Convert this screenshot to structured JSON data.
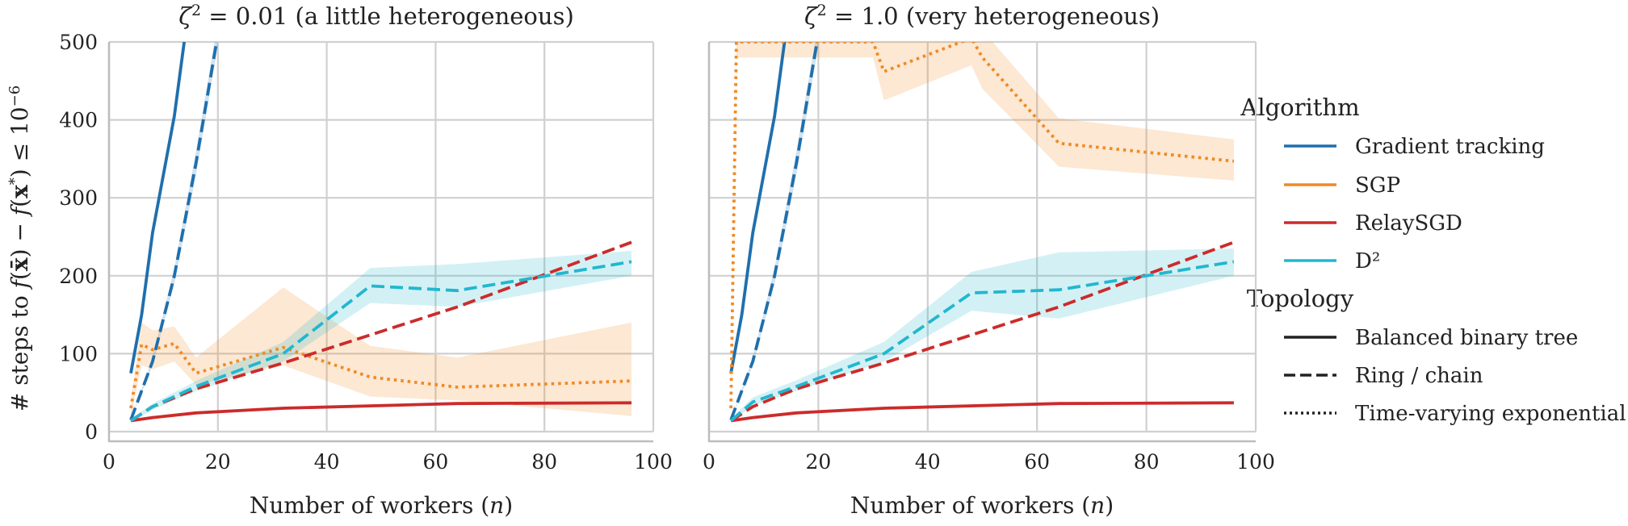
{
  "figure": {
    "ylabel": "# steps to f(x̄) − f(x*) ≤ 10⁻⁶",
    "ylabel_parts": {
      "a": "# steps to ",
      "b": "f",
      "c": "(",
      "d": "x̄",
      "e": ") − ",
      "f": "f",
      "g": "(",
      "h": "x",
      "i": "*",
      "j": ") ≤ 10",
      "k": "−6"
    }
  },
  "legend": {
    "algorithm_title": "Algorithm",
    "algorithms": [
      {
        "name": "Gradient tracking",
        "color": "#1f6fad"
      },
      {
        "name": "SGP",
        "color": "#f08a24"
      },
      {
        "name": "RelaySGD",
        "color": "#cc2b2b"
      },
      {
        "name": "D²",
        "color": "#22b7cf"
      }
    ],
    "topology_title": "Topology",
    "topologies": [
      {
        "name": "Balanced binary tree",
        "style": "solid"
      },
      {
        "name": "Ring / chain",
        "style": "dashed"
      },
      {
        "name": "Time-varying exponential",
        "style": "dotted"
      }
    ]
  },
  "chart_data": [
    {
      "type": "line",
      "title": "ζ² = 0.01 (a little heterogeneous)",
      "title_parts": {
        "a": "ζ",
        "b": "2",
        "c": " = 0.01 (a little heterogeneous)"
      },
      "xlabel": "Number of workers (n)",
      "xlabel_parts": {
        "a": "Number of workers (",
        "b": "n",
        "c": ")"
      },
      "xlim": [
        0,
        100
      ],
      "ylim": [
        0,
        500
      ],
      "xticks": [
        "0",
        "20",
        "40",
        "60",
        "80",
        "100"
      ],
      "yticks": [
        "0",
        "100",
        "200",
        "300",
        "400",
        "500"
      ],
      "grid": true,
      "series": [
        {
          "algorithm": "Gradient tracking",
          "topology": "Balanced binary tree",
          "color": "#1f6fad",
          "style": "solid",
          "x": [
            4,
            6,
            8,
            12,
            14
          ],
          "y": [
            75,
            150,
            255,
            405,
            510
          ]
        },
        {
          "algorithm": "Gradient tracking",
          "topology": "Ring / chain",
          "color": "#1f6fad",
          "style": "dashed",
          "x": [
            4,
            8,
            12,
            16,
            20
          ],
          "y": [
            15,
            90,
            200,
            345,
            510
          ],
          "band_low": [
            15,
            85,
            190,
            330,
            495
          ],
          "band_high": [
            15,
            95,
            210,
            360,
            525
          ]
        },
        {
          "algorithm": "SGP",
          "topology": "Time-varying exponential",
          "color": "#f08a24",
          "style": "dotted",
          "x": [
            4,
            6,
            8,
            12,
            16,
            32,
            48,
            64,
            96
          ],
          "y": [
            30,
            112,
            105,
            113,
            75,
            108,
            70,
            57,
            65
          ],
          "band_low": [
            20,
            85,
            80,
            90,
            60,
            85,
            45,
            40,
            20
          ],
          "band_high": [
            40,
            140,
            130,
            135,
            95,
            185,
            110,
            95,
            140
          ]
        },
        {
          "algorithm": "RelaySGD",
          "topology": "Balanced binary tree",
          "color": "#cc2b2b",
          "style": "solid",
          "x": [
            4,
            8,
            16,
            32,
            64,
            96
          ],
          "y": [
            14,
            18,
            24,
            30,
            36,
            37
          ]
        },
        {
          "algorithm": "RelaySGD",
          "topology": "Ring / chain",
          "color": "#cc2b2b",
          "style": "dashed",
          "x": [
            4,
            8,
            16,
            32,
            64,
            96
          ],
          "y": [
            14,
            32,
            55,
            88,
            160,
            243
          ]
        },
        {
          "algorithm": "D²",
          "topology": "Ring / chain",
          "color": "#22b7cf",
          "style": "dashed",
          "x": [
            4,
            8,
            16,
            32,
            48,
            64,
            96
          ],
          "y": [
            14,
            32,
            58,
            100,
            187,
            181,
            218
          ],
          "band_low": [
            12,
            28,
            52,
            90,
            165,
            160,
            200
          ],
          "band_high": [
            16,
            36,
            65,
            115,
            210,
            215,
            232
          ]
        }
      ]
    },
    {
      "type": "line",
      "title": "ζ² = 1.0 (very heterogeneous)",
      "title_parts": {
        "a": "ζ",
        "b": "2",
        "c": " = 1.0 (very heterogeneous)"
      },
      "xlabel": "Number of workers (n)",
      "xlabel_parts": {
        "a": "Number of workers (",
        "b": "n",
        "c": ")"
      },
      "xlim": [
        0,
        100
      ],
      "ylim": [
        0,
        500
      ],
      "xticks": [
        "0",
        "20",
        "40",
        "60",
        "80",
        "100"
      ],
      "yticks": [
        "0",
        "100",
        "200",
        "300",
        "400",
        "500"
      ],
      "grid": true,
      "series": [
        {
          "algorithm": "Gradient tracking",
          "topology": "Balanced binary tree",
          "color": "#1f6fad",
          "style": "solid",
          "x": [
            4,
            6,
            8,
            12,
            14
          ],
          "y": [
            75,
            150,
            255,
            405,
            510
          ]
        },
        {
          "algorithm": "Gradient tracking",
          "topology": "Ring / chain",
          "color": "#1f6fad",
          "style": "dashed",
          "x": [
            4,
            8,
            12,
            16,
            20
          ],
          "y": [
            15,
            90,
            200,
            345,
            510
          ],
          "band_low": [
            15,
            85,
            190,
            330,
            495
          ],
          "band_high": [
            15,
            95,
            210,
            360,
            525
          ]
        },
        {
          "algorithm": "SGP",
          "topology": "Time-varying exponential",
          "color": "#f08a24",
          "style": "dotted",
          "x": [
            4,
            5,
            30,
            32,
            48,
            50,
            64,
            96
          ],
          "y": [
            30,
            500,
            500,
            462,
            505,
            480,
            370,
            347
          ],
          "band_low": [
            20,
            480,
            480,
            425,
            470,
            440,
            340,
            322
          ],
          "band_high": [
            40,
            520,
            520,
            500,
            520,
            515,
            402,
            375
          ]
        },
        {
          "algorithm": "RelaySGD",
          "topology": "Balanced binary tree",
          "color": "#cc2b2b",
          "style": "solid",
          "x": [
            4,
            8,
            16,
            32,
            64,
            96
          ],
          "y": [
            14,
            18,
            24,
            30,
            36,
            37
          ]
        },
        {
          "algorithm": "RelaySGD",
          "topology": "Ring / chain",
          "color": "#cc2b2b",
          "style": "dashed",
          "x": [
            4,
            8,
            16,
            32,
            64,
            96
          ],
          "y": [
            14,
            32,
            55,
            88,
            160,
            243
          ]
        },
        {
          "algorithm": "D²",
          "topology": "Ring / chain",
          "color": "#22b7cf",
          "style": "dashed",
          "x": [
            4,
            8,
            16,
            32,
            48,
            64,
            96
          ],
          "y": [
            14,
            38,
            58,
            100,
            178,
            182,
            218
          ],
          "band_low": [
            12,
            33,
            52,
            90,
            155,
            145,
            200
          ],
          "band_high": [
            16,
            44,
            66,
            115,
            205,
            230,
            235
          ]
        }
      ]
    }
  ]
}
